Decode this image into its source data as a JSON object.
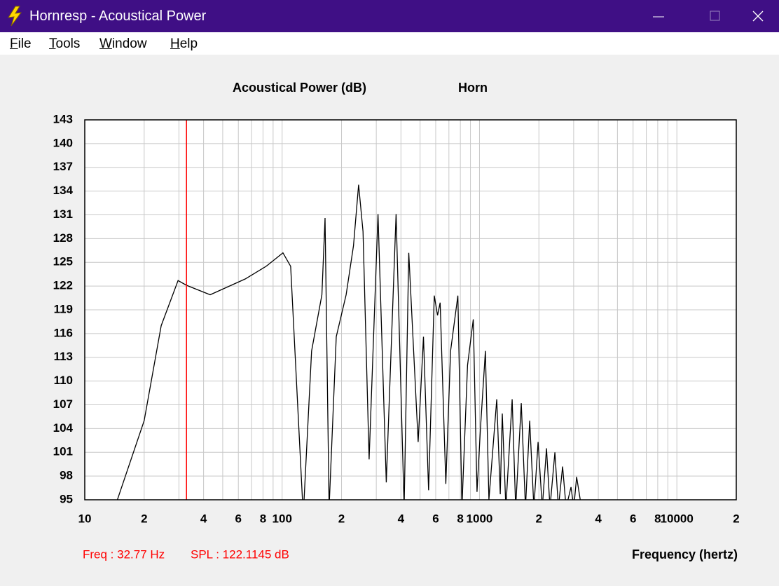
{
  "window": {
    "title": "Hornresp - Acoustical Power",
    "menu": [
      "File",
      "Tools",
      "Window",
      "Help"
    ]
  },
  "chart_data": {
    "type": "line",
    "title": "Acoustical Power (dB)",
    "subtitle": "Horn",
    "x_label": "Frequency (hertz)",
    "log_x": true,
    "grid": true,
    "xlim": [
      10,
      20000
    ],
    "ylim": [
      95,
      143
    ],
    "xticks": [
      10,
      {
        "value": 20,
        "label": "2"
      },
      {
        "value": 30,
        "label": null
      },
      {
        "value": 40,
        "label": "4"
      },
      {
        "value": 50,
        "label": null
      },
      {
        "value": 60,
        "label": "6"
      },
      {
        "value": 70,
        "label": null
      },
      {
        "value": 80,
        "label": "8"
      },
      {
        "value": 90,
        "label": null
      },
      100,
      {
        "value": 200,
        "label": "2"
      },
      {
        "value": 300,
        "label": null
      },
      {
        "value": 400,
        "label": "4"
      },
      {
        "value": 500,
        "label": null
      },
      {
        "value": 600,
        "label": "6"
      },
      {
        "value": 700,
        "label": null
      },
      {
        "value": 800,
        "label": "8"
      },
      {
        "value": 900,
        "label": null
      },
      1000,
      {
        "value": 2000,
        "label": "2"
      },
      {
        "value": 3000,
        "label": null
      },
      {
        "value": 4000,
        "label": "4"
      },
      {
        "value": 5000,
        "label": null
      },
      {
        "value": 6000,
        "label": "6"
      },
      {
        "value": 7000,
        "label": null
      },
      {
        "value": 8000,
        "label": "8"
      },
      {
        "value": 9000,
        "label": null
      },
      10000,
      {
        "value": 20000,
        "label": "2"
      }
    ],
    "yticks": [
      95,
      98,
      101,
      104,
      107,
      110,
      113,
      116,
      119,
      122,
      125,
      128,
      131,
      134,
      137,
      140,
      143
    ],
    "series": [
      {
        "name": "Horn",
        "color": "#000000",
        "x": [
          14,
          20,
          24.4,
          29.7,
          32.77,
          43.2,
          65,
          83,
          101,
          110.5,
          128,
          141,
          159,
          165,
          173,
          188,
          211,
          230,
          244,
          257,
          276,
          306,
          337,
          378,
          415,
          438,
          489,
          520,
          552,
          590,
          613,
          632,
          675,
          714,
          777,
          815,
          870,
          930,
          971,
          1012,
          1071,
          1116,
          1223,
          1274,
          1305,
          1360,
          1464,
          1525,
          1628,
          1710,
          1796,
          1886,
          1981,
          2080,
          2185,
          2276,
          2410,
          2510,
          2637,
          2747,
          2908,
          3005,
          3105,
          3288
        ],
        "values": [
          93.6,
          105,
          117,
          122.7,
          122.1,
          120.9,
          122.9,
          124.5,
          126.2,
          124.5,
          93,
          113.8,
          120.9,
          130.6,
          94,
          115.6,
          120.9,
          127.1,
          134.8,
          128.9,
          100.1,
          131.1,
          97.2,
          131.1,
          94,
          126.2,
          102.3,
          115.6,
          96.2,
          120.8,
          118.3,
          119.9,
          97,
          113.8,
          120.8,
          94,
          112,
          117.8,
          96,
          104.1,
          113.8,
          95,
          107.7,
          95.7,
          105.9,
          94,
          107.7,
          94,
          107.2,
          94,
          105,
          94,
          102.3,
          94,
          101.5,
          94,
          101,
          94,
          99.2,
          94,
          96.6,
          94,
          97.9,
          94
        ]
      }
    ],
    "cursor": {
      "x": 32.77,
      "color": "#ff0000",
      "label": "Freq : 32.77 Hz",
      "spl_label": "SPL : 122.1145 dB"
    }
  }
}
